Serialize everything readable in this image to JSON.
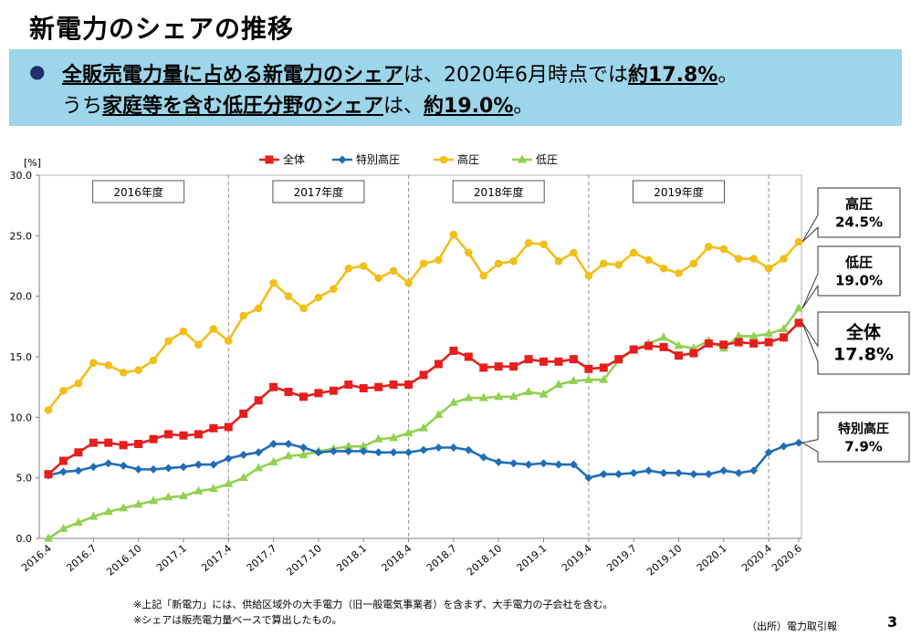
{
  "page": {
    "title": "新電力のシェアの推移",
    "banner": {
      "line1": {
        "a": "全販売電力量に占める新電力のシェア",
        "b": "は、2020年6月時点では",
        "c": "約17.8%",
        "d": "。"
      },
      "line2": {
        "a": "うち",
        "b": "家庭等を含む低圧分野のシェア",
        "c": "は、",
        "d": "約19.0%",
        "e": "。"
      }
    },
    "notes": [
      "※上記「新電力」には、供給区域外の大手電力（旧一般電気事業者）を含まず、大手電力の子会社を含む。",
      "※シェアは販売電力量ベースで算出したもの。"
    ],
    "source": "（出所）電力取引報",
    "page_number": "3"
  },
  "chart_data": {
    "type": "line",
    "yunit": "[%]",
    "ylim": [
      0,
      30
    ],
    "yticks": [
      "0.0",
      "5.0",
      "10.0",
      "15.0",
      "20.0",
      "25.0",
      "30.0"
    ],
    "grid": false,
    "legend": "top-center",
    "x": [
      "2016.4",
      "2016.5",
      "2016.6",
      "2016.7",
      "2016.8",
      "2016.9",
      "2016.10",
      "2016.11",
      "2016.12",
      "2017.1",
      "2017.2",
      "2017.3",
      "2017.4",
      "2017.5",
      "2017.6",
      "2017.7",
      "2017.8",
      "2017.9",
      "2017.10",
      "2017.11",
      "2017.12",
      "2018.1",
      "2018.2",
      "2018.3",
      "2018.4",
      "2018.5",
      "2018.6",
      "2018.7",
      "2018.8",
      "2018.9",
      "2018.10",
      "2018.11",
      "2018.12",
      "2019.1",
      "2019.2",
      "2019.3",
      "2019.4",
      "2019.5",
      "2019.6",
      "2019.7",
      "2019.8",
      "2019.9",
      "2019.10",
      "2019.11",
      "2019.12",
      "2020.1",
      "2020.2",
      "2020.3",
      "2020.4",
      "2020.5",
      "2020.6"
    ],
    "xtick_labels": [
      "2016.4",
      "2016.7",
      "2016.10",
      "2017.1",
      "2017.4",
      "2017.7",
      "2017.10",
      "2018.1",
      "2018.4",
      "2018.7",
      "2018.10",
      "2019.1",
      "2019.4",
      "2019.7",
      "2019.10",
      "2020.1",
      "2020.4",
      "2020.6"
    ],
    "fiscal_years": [
      {
        "label": "2016年度",
        "start": "2016.4"
      },
      {
        "label": "2017年度",
        "start": "2017.4"
      },
      {
        "label": "2018年度",
        "start": "2018.4"
      },
      {
        "label": "2019年度",
        "start": "2019.4"
      }
    ],
    "dividers": [
      "2017.4",
      "2018.4",
      "2019.4",
      "2020.4"
    ],
    "series": [
      {
        "name": "全体",
        "color": "#e61e1e",
        "marker": "square",
        "values": [
          5.3,
          6.4,
          7.1,
          7.9,
          7.9,
          7.7,
          7.8,
          8.2,
          8.6,
          8.5,
          8.6,
          9.1,
          9.2,
          10.3,
          11.4,
          12.5,
          12.1,
          11.7,
          12.0,
          12.2,
          12.7,
          12.4,
          12.5,
          12.7,
          12.7,
          13.5,
          14.4,
          15.5,
          15.0,
          14.1,
          14.2,
          14.2,
          14.8,
          14.6,
          14.6,
          14.8,
          14.0,
          14.1,
          14.8,
          15.6,
          15.9,
          15.8,
          15.1,
          15.3,
          16.1,
          16.0,
          16.2,
          16.1,
          16.2,
          16.6,
          17.8
        ]
      },
      {
        "name": "特別高圧",
        "color": "#1f6db4",
        "marker": "diamond",
        "values": [
          5.2,
          5.5,
          5.6,
          5.9,
          6.2,
          6.0,
          5.7,
          5.7,
          5.8,
          5.9,
          6.1,
          6.1,
          6.6,
          6.9,
          7.1,
          7.8,
          7.8,
          7.5,
          7.1,
          7.2,
          7.2,
          7.2,
          7.1,
          7.1,
          7.1,
          7.3,
          7.5,
          7.5,
          7.3,
          6.7,
          6.3,
          6.2,
          6.1,
          6.2,
          6.1,
          6.1,
          5.0,
          5.3,
          5.3,
          5.4,
          5.6,
          5.4,
          5.4,
          5.3,
          5.3,
          5.6,
          5.4,
          5.6,
          7.1,
          7.6,
          7.9
        ]
      },
      {
        "name": "高圧",
        "color": "#f2be18",
        "marker": "circle",
        "values": [
          10.6,
          12.2,
          12.8,
          14.5,
          14.3,
          13.7,
          13.9,
          14.7,
          16.3,
          17.1,
          16.0,
          17.3,
          16.3,
          18.4,
          19.0,
          21.1,
          20.0,
          19.0,
          19.9,
          20.6,
          22.3,
          22.5,
          21.5,
          22.1,
          21.1,
          22.7,
          23.0,
          25.1,
          23.6,
          21.7,
          22.7,
          22.9,
          24.4,
          24.3,
          22.9,
          23.6,
          21.7,
          22.7,
          22.6,
          23.6,
          23.0,
          22.3,
          21.9,
          22.7,
          24.1,
          23.9,
          23.1,
          23.1,
          22.3,
          23.1,
          24.5
        ]
      },
      {
        "name": "低圧",
        "color": "#92d050",
        "marker": "triangle",
        "values": [
          0.0,
          0.8,
          1.3,
          1.8,
          2.2,
          2.5,
          2.8,
          3.1,
          3.4,
          3.5,
          3.9,
          4.1,
          4.5,
          5.0,
          5.8,
          6.3,
          6.8,
          6.9,
          7.2,
          7.4,
          7.6,
          7.6,
          8.2,
          8.3,
          8.7,
          9.1,
          10.2,
          11.2,
          11.6,
          11.6,
          11.7,
          11.7,
          12.1,
          11.9,
          12.7,
          13.0,
          13.1,
          13.1,
          14.7,
          15.6,
          16.1,
          16.6,
          15.9,
          15.7,
          16.3,
          15.7,
          16.7,
          16.7,
          16.9,
          17.3,
          19.0
        ]
      }
    ],
    "callouts": [
      {
        "name": "高圧",
        "value": "24.5%"
      },
      {
        "name": "低圧",
        "value": "19.0%"
      },
      {
        "name": "全体",
        "value": "17.8%"
      },
      {
        "name": "特別高圧",
        "value": "7.9%"
      }
    ]
  }
}
